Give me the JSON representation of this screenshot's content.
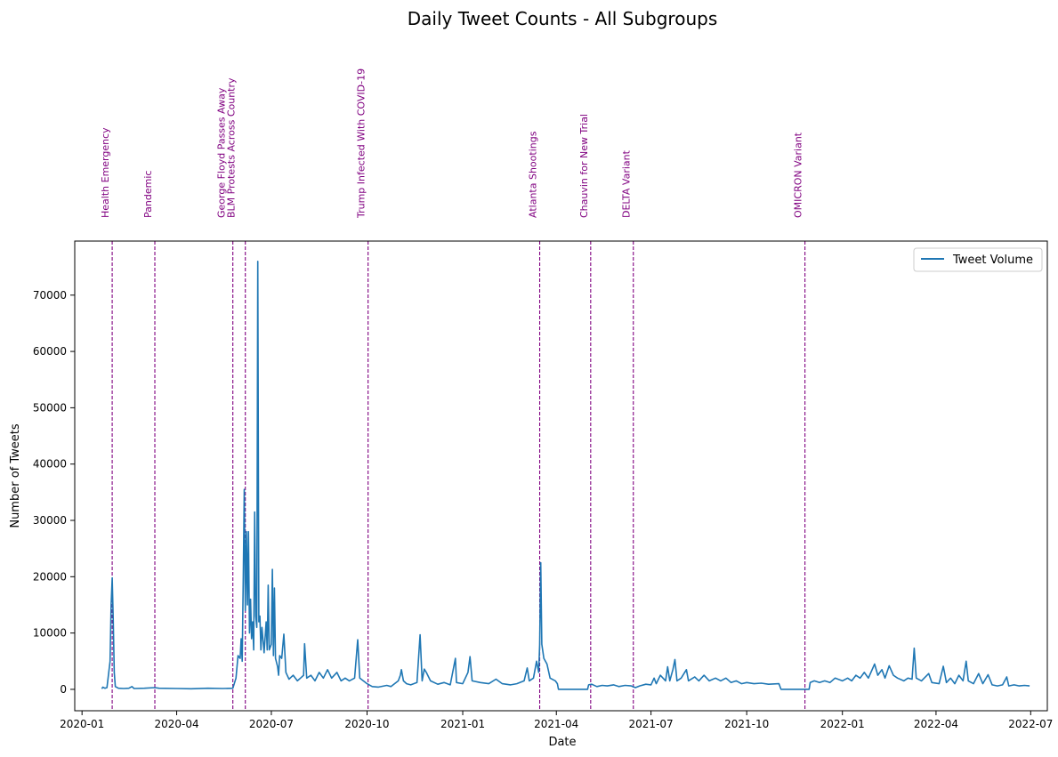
{
  "chart_data": {
    "type": "line",
    "title": "Daily Tweet Counts - All Subgroups",
    "xlabel": "Date",
    "ylabel": "Number of Tweets",
    "xlim": [
      "2019-12-25",
      "2022-07-17"
    ],
    "ylim": [
      -3800,
      79600
    ],
    "x_ticks": [
      "2020-01-01",
      "2020-04-01",
      "2020-07-01",
      "2020-10-01",
      "2021-01-01",
      "2021-04-01",
      "2021-07-01",
      "2021-10-01",
      "2022-01-01",
      "2022-04-01",
      "2022-07-01"
    ],
    "y_ticks": [
      0,
      10000,
      20000,
      30000,
      40000,
      50000,
      60000,
      70000
    ],
    "legend": {
      "position": "upper right",
      "entries": [
        "Tweet Volume"
      ]
    },
    "grid": false,
    "colors": {
      "line": "#1f77b4",
      "event": "#800080"
    },
    "series": [
      {
        "name": "Tweet Volume",
        "points": [
          [
            "2020-01-20",
            100
          ],
          [
            "2020-01-21",
            400
          ],
          [
            "2020-01-23",
            200
          ],
          [
            "2020-01-25",
            300
          ],
          [
            "2020-01-28",
            5000
          ],
          [
            "2020-01-29",
            15000
          ],
          [
            "2020-01-30",
            19800
          ],
          [
            "2020-01-31",
            12000
          ],
          [
            "2020-02-01",
            3000
          ],
          [
            "2020-02-02",
            500
          ],
          [
            "2020-02-05",
            200
          ],
          [
            "2020-02-10",
            150
          ],
          [
            "2020-02-15",
            200
          ],
          [
            "2020-02-18",
            500
          ],
          [
            "2020-02-20",
            150
          ],
          [
            "2020-03-01",
            200
          ],
          [
            "2020-03-11",
            300
          ],
          [
            "2020-03-15",
            200
          ],
          [
            "2020-04-01",
            150
          ],
          [
            "2020-04-15",
            100
          ],
          [
            "2020-05-01",
            200
          ],
          [
            "2020-05-15",
            150
          ],
          [
            "2020-05-25",
            200
          ],
          [
            "2020-05-28",
            2000
          ],
          [
            "2020-05-30",
            6000
          ],
          [
            "2020-06-01",
            5500
          ],
          [
            "2020-06-02",
            9000
          ],
          [
            "2020-06-03",
            5000
          ],
          [
            "2020-06-04",
            20000
          ],
          [
            "2020-06-05",
            35500
          ],
          [
            "2020-06-06",
            14000
          ],
          [
            "2020-06-07",
            28000
          ],
          [
            "2020-06-08",
            15000
          ],
          [
            "2020-06-09",
            28000
          ],
          [
            "2020-06-10",
            10000
          ],
          [
            "2020-06-11",
            16000
          ],
          [
            "2020-06-12",
            9000
          ],
          [
            "2020-06-13",
            12000
          ],
          [
            "2020-06-14",
            7000
          ],
          [
            "2020-06-15",
            31500
          ],
          [
            "2020-06-16",
            13000
          ],
          [
            "2020-06-17",
            11000
          ],
          [
            "2020-06-18",
            76000
          ],
          [
            "2020-06-19",
            12000
          ],
          [
            "2020-06-20",
            13000
          ],
          [
            "2020-06-21",
            7000
          ],
          [
            "2020-06-22",
            11000
          ],
          [
            "2020-06-24",
            6500
          ],
          [
            "2020-06-26",
            12000
          ],
          [
            "2020-06-27",
            7000
          ],
          [
            "2020-06-28",
            18500
          ],
          [
            "2020-06-29",
            7000
          ],
          [
            "2020-07-01",
            8000
          ],
          [
            "2020-07-02",
            21300
          ],
          [
            "2020-07-03",
            6000
          ],
          [
            "2020-07-04",
            18000
          ],
          [
            "2020-07-05",
            5500
          ],
          [
            "2020-07-07",
            4000
          ],
          [
            "2020-07-08",
            2500
          ],
          [
            "2020-07-09",
            6000
          ],
          [
            "2020-07-11",
            5500
          ],
          [
            "2020-07-13",
            9800
          ],
          [
            "2020-07-15",
            3000
          ],
          [
            "2020-07-18",
            1800
          ],
          [
            "2020-07-22",
            2500
          ],
          [
            "2020-07-26",
            1500
          ],
          [
            "2020-07-29",
            2000
          ],
          [
            "2020-08-01",
            2500
          ],
          [
            "2020-08-02",
            8100
          ],
          [
            "2020-08-04",
            2000
          ],
          [
            "2020-08-08",
            2500
          ],
          [
            "2020-08-12",
            1500
          ],
          [
            "2020-08-16",
            3000
          ],
          [
            "2020-08-20",
            2000
          ],
          [
            "2020-08-24",
            3500
          ],
          [
            "2020-08-28",
            2000
          ],
          [
            "2020-09-02",
            3000
          ],
          [
            "2020-09-06",
            1500
          ],
          [
            "2020-09-10",
            2000
          ],
          [
            "2020-09-14",
            1500
          ],
          [
            "2020-09-19",
            2000
          ],
          [
            "2020-09-22",
            8800
          ],
          [
            "2020-09-24",
            2000
          ],
          [
            "2020-10-01",
            1000
          ],
          [
            "2020-10-06",
            500
          ],
          [
            "2020-10-12",
            400
          ],
          [
            "2020-10-20",
            700
          ],
          [
            "2020-10-24",
            500
          ],
          [
            "2020-10-31",
            1500
          ],
          [
            "2020-11-02",
            2500
          ],
          [
            "2020-11-03",
            3500
          ],
          [
            "2020-11-05",
            1500
          ],
          [
            "2020-11-08",
            1000
          ],
          [
            "2020-11-12",
            800
          ],
          [
            "2020-11-18",
            1200
          ],
          [
            "2020-11-21",
            9700
          ],
          [
            "2020-11-23",
            1500
          ],
          [
            "2020-11-25",
            3600
          ],
          [
            "2020-11-27",
            3000
          ],
          [
            "2020-12-01",
            1500
          ],
          [
            "2020-12-08",
            900
          ],
          [
            "2020-12-14",
            1200
          ],
          [
            "2020-12-20",
            800
          ],
          [
            "2020-12-25",
            5500
          ],
          [
            "2020-12-26",
            1200
          ],
          [
            "2021-01-01",
            1000
          ],
          [
            "2021-01-06",
            3000
          ],
          [
            "2021-01-08",
            5800
          ],
          [
            "2021-01-10",
            1500
          ],
          [
            "2021-01-18",
            1200
          ],
          [
            "2021-01-26",
            1000
          ],
          [
            "2021-02-02",
            1800
          ],
          [
            "2021-02-08",
            1000
          ],
          [
            "2021-02-16",
            800
          ],
          [
            "2021-02-22",
            1000
          ],
          [
            "2021-03-01",
            1500
          ],
          [
            "2021-03-04",
            3800
          ],
          [
            "2021-03-06",
            1500
          ],
          [
            "2021-03-10",
            2000
          ],
          [
            "2021-03-13",
            5000
          ],
          [
            "2021-03-15",
            3000
          ],
          [
            "2021-03-16",
            8000
          ],
          [
            "2021-03-17",
            22500
          ],
          [
            "2021-03-18",
            8000
          ],
          [
            "2021-03-20",
            5500
          ],
          [
            "2021-03-23",
            4500
          ],
          [
            "2021-03-26",
            2000
          ],
          [
            "2021-03-31",
            1500
          ],
          [
            "2021-04-02",
            1000
          ],
          [
            "2021-04-03",
            0
          ],
          [
            "2021-04-10",
            0
          ],
          [
            "2021-04-20",
            0
          ],
          [
            "2021-05-01",
            0
          ],
          [
            "2021-05-02",
            800
          ],
          [
            "2021-05-05",
            900
          ],
          [
            "2021-05-10",
            500
          ],
          [
            "2021-05-15",
            700
          ],
          [
            "2021-05-20",
            600
          ],
          [
            "2021-05-26",
            800
          ],
          [
            "2021-05-31",
            500
          ],
          [
            "2021-06-06",
            700
          ],
          [
            "2021-06-12",
            600
          ],
          [
            "2021-06-16",
            300
          ],
          [
            "2021-06-20",
            600
          ],
          [
            "2021-06-26",
            900
          ],
          [
            "2021-07-01",
            800
          ],
          [
            "2021-07-04",
            2000
          ],
          [
            "2021-07-06",
            1000
          ],
          [
            "2021-07-10",
            2500
          ],
          [
            "2021-07-15",
            1500
          ],
          [
            "2021-07-17",
            4000
          ],
          [
            "2021-07-19",
            1500
          ],
          [
            "2021-07-22",
            3500
          ],
          [
            "2021-07-24",
            5300
          ],
          [
            "2021-07-26",
            1500
          ],
          [
            "2021-07-30",
            2000
          ],
          [
            "2021-08-04",
            3500
          ],
          [
            "2021-08-06",
            1500
          ],
          [
            "2021-08-12",
            2200
          ],
          [
            "2021-08-16",
            1500
          ],
          [
            "2021-08-21",
            2500
          ],
          [
            "2021-08-26",
            1500
          ],
          [
            "2021-09-01",
            2000
          ],
          [
            "2021-09-06",
            1500
          ],
          [
            "2021-09-11",
            2000
          ],
          [
            "2021-09-16",
            1200
          ],
          [
            "2021-09-21",
            1500
          ],
          [
            "2021-09-26",
            1000
          ],
          [
            "2021-10-01",
            1200
          ],
          [
            "2021-10-08",
            1000
          ],
          [
            "2021-10-15",
            1100
          ],
          [
            "2021-10-22",
            900
          ],
          [
            "2021-11-01",
            1000
          ],
          [
            "2021-11-03",
            0
          ],
          [
            "2021-11-10",
            0
          ],
          [
            "2021-11-20",
            0
          ],
          [
            "2021-11-30",
            0
          ],
          [
            "2021-12-01",
            1200
          ],
          [
            "2021-12-05",
            1500
          ],
          [
            "2021-12-10",
            1200
          ],
          [
            "2021-12-15",
            1500
          ],
          [
            "2021-12-20",
            1200
          ],
          [
            "2021-12-25",
            2000
          ],
          [
            "2022-01-01",
            1500
          ],
          [
            "2022-01-06",
            2000
          ],
          [
            "2022-01-10",
            1500
          ],
          [
            "2022-01-14",
            2500
          ],
          [
            "2022-01-18",
            2000
          ],
          [
            "2022-01-22",
            3000
          ],
          [
            "2022-01-26",
            2000
          ],
          [
            "2022-02-01",
            4500
          ],
          [
            "2022-02-04",
            2500
          ],
          [
            "2022-02-08",
            3500
          ],
          [
            "2022-02-11",
            2000
          ],
          [
            "2022-02-15",
            4200
          ],
          [
            "2022-02-19",
            2500
          ],
          [
            "2022-02-23",
            2000
          ],
          [
            "2022-03-01",
            1500
          ],
          [
            "2022-03-05",
            2000
          ],
          [
            "2022-03-09",
            1800
          ],
          [
            "2022-03-11",
            7300
          ],
          [
            "2022-03-13",
            2000
          ],
          [
            "2022-03-18",
            1500
          ],
          [
            "2022-03-25",
            2800
          ],
          [
            "2022-03-28",
            1200
          ],
          [
            "2022-04-04",
            1000
          ],
          [
            "2022-04-08",
            4100
          ],
          [
            "2022-04-11",
            1200
          ],
          [
            "2022-04-15",
            2000
          ],
          [
            "2022-04-19",
            1000
          ],
          [
            "2022-04-23",
            2500
          ],
          [
            "2022-04-27",
            1500
          ],
          [
            "2022-04-30",
            5000
          ],
          [
            "2022-05-02",
            1500
          ],
          [
            "2022-05-07",
            1000
          ],
          [
            "2022-05-12",
            2800
          ],
          [
            "2022-05-16",
            1000
          ],
          [
            "2022-05-21",
            2600
          ],
          [
            "2022-05-25",
            800
          ],
          [
            "2022-05-30",
            600
          ],
          [
            "2022-06-04",
            800
          ],
          [
            "2022-06-08",
            2200
          ],
          [
            "2022-06-10",
            600
          ],
          [
            "2022-06-15",
            800
          ],
          [
            "2022-06-20",
            600
          ],
          [
            "2022-06-25",
            700
          ],
          [
            "2022-06-30",
            600
          ]
        ]
      }
    ],
    "events": [
      {
        "date": "2020-01-30",
        "label": "Health Emergency"
      },
      {
        "date": "2020-03-11",
        "label": "Pandemic"
      },
      {
        "date": "2020-05-25",
        "label": "George Floyd Passes Away"
      },
      {
        "date": "2020-06-06",
        "label": "BLM Protests Across Country"
      },
      {
        "date": "2020-10-02",
        "label": "Trump Infected With COVID-19"
      },
      {
        "date": "2021-03-16",
        "label": "Atlanta Shootings"
      },
      {
        "date": "2021-05-04",
        "label": "Chauvin for New Trial"
      },
      {
        "date": "2021-06-14",
        "label": "DELTA Variant"
      },
      {
        "date": "2021-11-26",
        "label": "OMICRON Variant"
      }
    ]
  }
}
